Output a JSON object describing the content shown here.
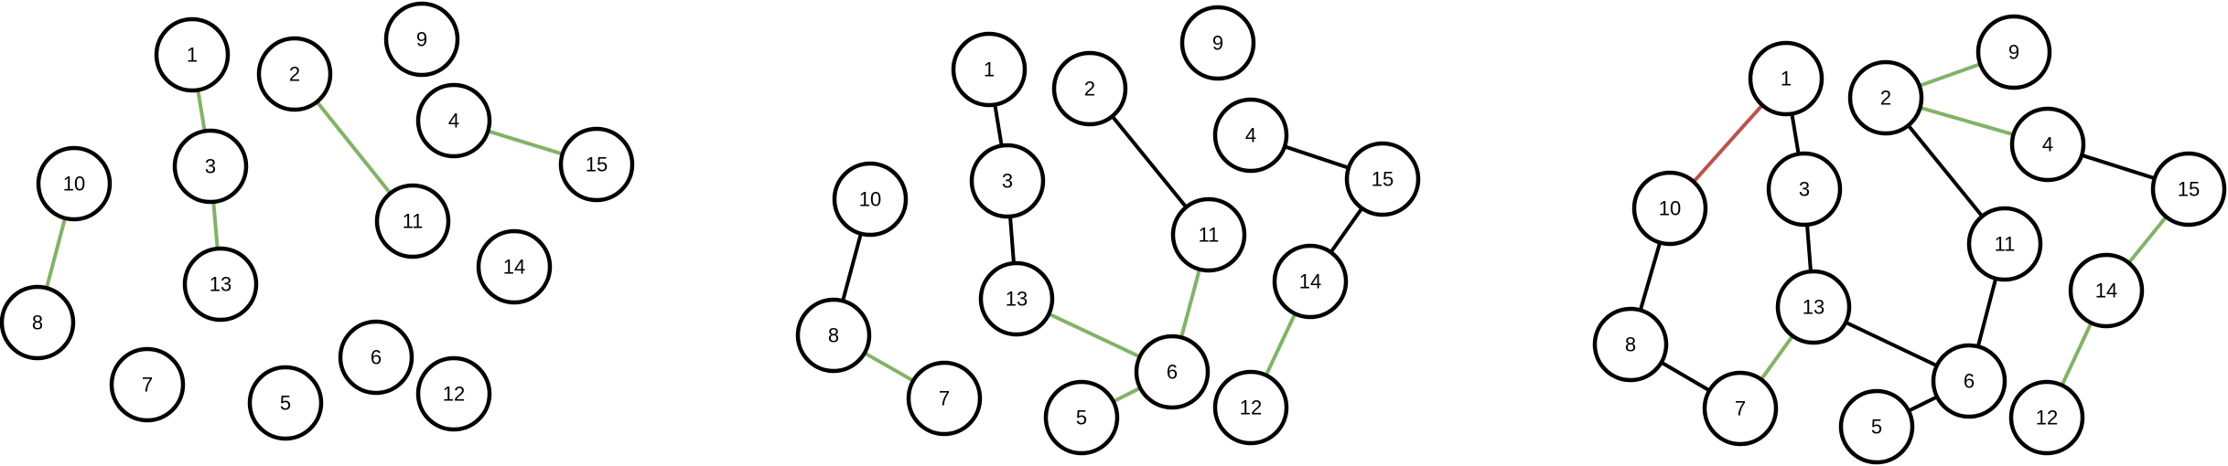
{
  "colors": {
    "default": "#000000",
    "new": "#82b366",
    "removed": "#b85450"
  },
  "panels": [
    {
      "nodes": [
        {
          "id": "1"
        },
        {
          "id": "2"
        },
        {
          "id": "9"
        },
        {
          "id": "3"
        },
        {
          "id": "4"
        },
        {
          "id": "10"
        },
        {
          "id": "15"
        },
        {
          "id": "11"
        },
        {
          "id": "14"
        },
        {
          "id": "13"
        },
        {
          "id": "8"
        },
        {
          "id": "6"
        },
        {
          "id": "7"
        },
        {
          "id": "5"
        },
        {
          "id": "12"
        }
      ],
      "edges": [
        {
          "from": "1",
          "to": "3",
          "color": "new"
        },
        {
          "from": "3",
          "to": "13",
          "color": "new"
        },
        {
          "from": "2",
          "to": "11",
          "color": "new"
        },
        {
          "from": "4",
          "to": "15",
          "color": "new"
        },
        {
          "from": "10",
          "to": "8",
          "color": "new"
        }
      ]
    },
    {
      "nodes": [
        {
          "id": "1"
        },
        {
          "id": "2"
        },
        {
          "id": "9"
        },
        {
          "id": "4"
        },
        {
          "id": "3"
        },
        {
          "id": "15"
        },
        {
          "id": "10"
        },
        {
          "id": "11"
        },
        {
          "id": "14"
        },
        {
          "id": "13"
        },
        {
          "id": "8"
        },
        {
          "id": "6"
        },
        {
          "id": "7"
        },
        {
          "id": "5"
        },
        {
          "id": "12"
        }
      ],
      "edges": [
        {
          "from": "1",
          "to": "3",
          "color": "default"
        },
        {
          "from": "3",
          "to": "13",
          "color": "default"
        },
        {
          "from": "2",
          "to": "11",
          "color": "default"
        },
        {
          "from": "4",
          "to": "15",
          "color": "default"
        },
        {
          "from": "15",
          "to": "14",
          "color": "default"
        },
        {
          "from": "10",
          "to": "8",
          "color": "default"
        },
        {
          "from": "8",
          "to": "7",
          "color": "new"
        },
        {
          "from": "13",
          "to": "6",
          "color": "new"
        },
        {
          "from": "11",
          "to": "6",
          "color": "new"
        },
        {
          "from": "6",
          "to": "5",
          "color": "new"
        },
        {
          "from": "14",
          "to": "12",
          "color": "new"
        }
      ]
    },
    {
      "nodes": [
        {
          "id": "1"
        },
        {
          "id": "9"
        },
        {
          "id": "2"
        },
        {
          "id": "4"
        },
        {
          "id": "3"
        },
        {
          "id": "10"
        },
        {
          "id": "15"
        },
        {
          "id": "11"
        },
        {
          "id": "14"
        },
        {
          "id": "13"
        },
        {
          "id": "8"
        },
        {
          "id": "6"
        },
        {
          "id": "7"
        },
        {
          "id": "5"
        },
        {
          "id": "12"
        }
      ],
      "edges": [
        {
          "from": "1",
          "to": "10",
          "color": "removed"
        },
        {
          "from": "1",
          "to": "3",
          "color": "default"
        },
        {
          "from": "2",
          "to": "9",
          "color": "new"
        },
        {
          "from": "2",
          "to": "4",
          "color": "new"
        },
        {
          "from": "2",
          "to": "11",
          "color": "default"
        },
        {
          "from": "4",
          "to": "15",
          "color": "default"
        },
        {
          "from": "15",
          "to": "14",
          "color": "new"
        },
        {
          "from": "14",
          "to": "12",
          "color": "new"
        },
        {
          "from": "3",
          "to": "13",
          "color": "default"
        },
        {
          "from": "13",
          "to": "6",
          "color": "default"
        },
        {
          "from": "13",
          "to": "7",
          "color": "new"
        },
        {
          "from": "11",
          "to": "6",
          "color": "default"
        },
        {
          "from": "6",
          "to": "5",
          "color": "default"
        },
        {
          "from": "10",
          "to": "8",
          "color": "default"
        },
        {
          "from": "8",
          "to": "7",
          "color": "default"
        }
      ]
    }
  ]
}
